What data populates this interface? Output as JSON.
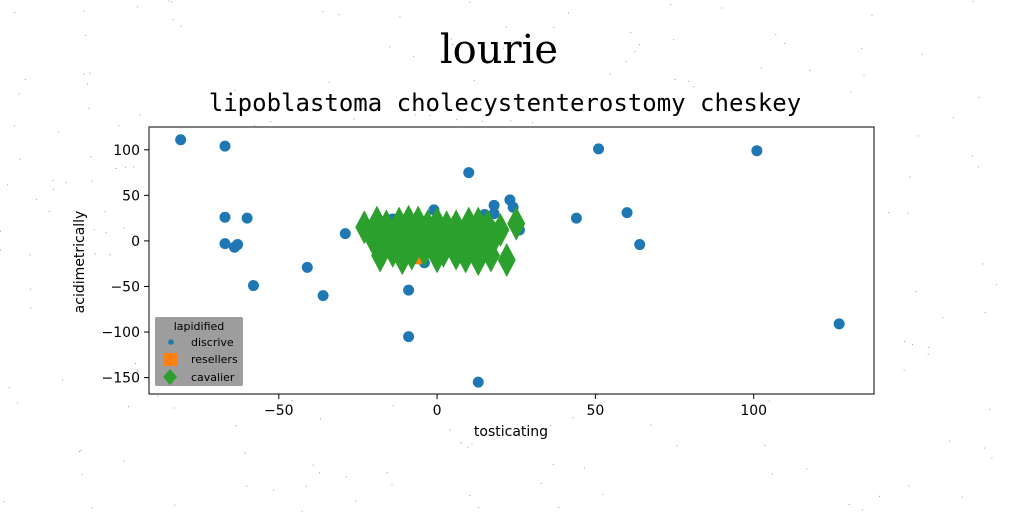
{
  "figure": {
    "suptitle": "lourie",
    "colors": {
      "discrive": "#1f77b4",
      "resellers": "#ff7f0e",
      "cavalier": "#2ca02c",
      "legend_bg": "#8c8c8c"
    }
  },
  "chart_data": {
    "type": "scatter",
    "title": "lipoblastoma cholecystenterostomy cheskey",
    "xlabel": "tosticating",
    "ylabel": "acidimetrically",
    "xlim": [
      -91,
      138
    ],
    "ylim": [
      -168,
      125
    ],
    "xticks": [
      -50,
      0,
      50,
      100
    ],
    "yticks": [
      100,
      50,
      0,
      -50,
      -100,
      -150
    ],
    "xtick_labels": [
      "−50",
      "0",
      "50",
      "100"
    ],
    "ytick_labels": [
      "100",
      "50",
      "0",
      "−50",
      "−100",
      "−150"
    ],
    "grid": false,
    "legend": {
      "title": "lapidified",
      "position": "lower-left",
      "entries": [
        "discrive",
        "resellers",
        "cavalier"
      ]
    },
    "series": [
      {
        "name": "discrive",
        "marker": "circle",
        "points": [
          [
            -81,
            111
          ],
          [
            -67,
            104
          ],
          [
            -67,
            26
          ],
          [
            -60,
            25
          ],
          [
            -67,
            -3
          ],
          [
            -64,
            -7
          ],
          [
            -63,
            -4
          ],
          [
            -58,
            -49
          ],
          [
            -41,
            -29
          ],
          [
            -36,
            -60
          ],
          [
            -29,
            8
          ],
          [
            -9,
            -54
          ],
          [
            -9,
            -105
          ],
          [
            13,
            -155
          ],
          [
            10,
            75
          ],
          [
            -1,
            34
          ],
          [
            -14,
            24
          ],
          [
            -5,
            -13
          ],
          [
            -4,
            -24
          ],
          [
            15,
            29
          ],
          [
            18,
            39
          ],
          [
            18,
            30
          ],
          [
            23,
            45
          ],
          [
            24,
            37
          ],
          [
            26,
            12
          ],
          [
            14,
            -8
          ],
          [
            44,
            25
          ],
          [
            51,
            101
          ],
          [
            60,
            31
          ],
          [
            64,
            -4
          ],
          [
            101,
            99
          ],
          [
            127,
            -91
          ]
        ]
      },
      {
        "name": "resellers",
        "marker": "square",
        "points": [
          [
            -10,
            -10
          ],
          [
            -7,
            -18
          ],
          [
            -5,
            0
          ],
          [
            0,
            2
          ],
          [
            1,
            -5
          ],
          [
            -3,
            -8
          ]
        ]
      },
      {
        "name": "cavalier",
        "marker": "diamond",
        "points": [
          [
            -23,
            15
          ],
          [
            -19,
            20
          ],
          [
            -16,
            16
          ],
          [
            -12,
            19
          ],
          [
            -9,
            21
          ],
          [
            -6,
            20
          ],
          [
            -3,
            16
          ],
          [
            0,
            19
          ],
          [
            3,
            15
          ],
          [
            6,
            16
          ],
          [
            10,
            19
          ],
          [
            13,
            19
          ],
          [
            16,
            16
          ],
          [
            20,
            12
          ],
          [
            25,
            19
          ],
          [
            -20,
            1
          ],
          [
            -17,
            4
          ],
          [
            -13,
            0
          ],
          [
            -10,
            -2
          ],
          [
            -7,
            3
          ],
          [
            -4,
            0
          ],
          [
            -1,
            2
          ],
          [
            2,
            1
          ],
          [
            5,
            -1
          ],
          [
            8,
            0
          ],
          [
            12,
            -1
          ],
          [
            15,
            3
          ],
          [
            18,
            4
          ],
          [
            -18,
            -16
          ],
          [
            -14,
            -11
          ],
          [
            -11,
            -19
          ],
          [
            -8,
            -14
          ],
          [
            -4,
            -10
          ],
          [
            0,
            -17
          ],
          [
            2,
            -11
          ],
          [
            6,
            -14
          ],
          [
            9,
            -17
          ],
          [
            13,
            -20
          ],
          [
            17,
            -16
          ],
          [
            22,
            -21
          ]
        ]
      }
    ]
  }
}
